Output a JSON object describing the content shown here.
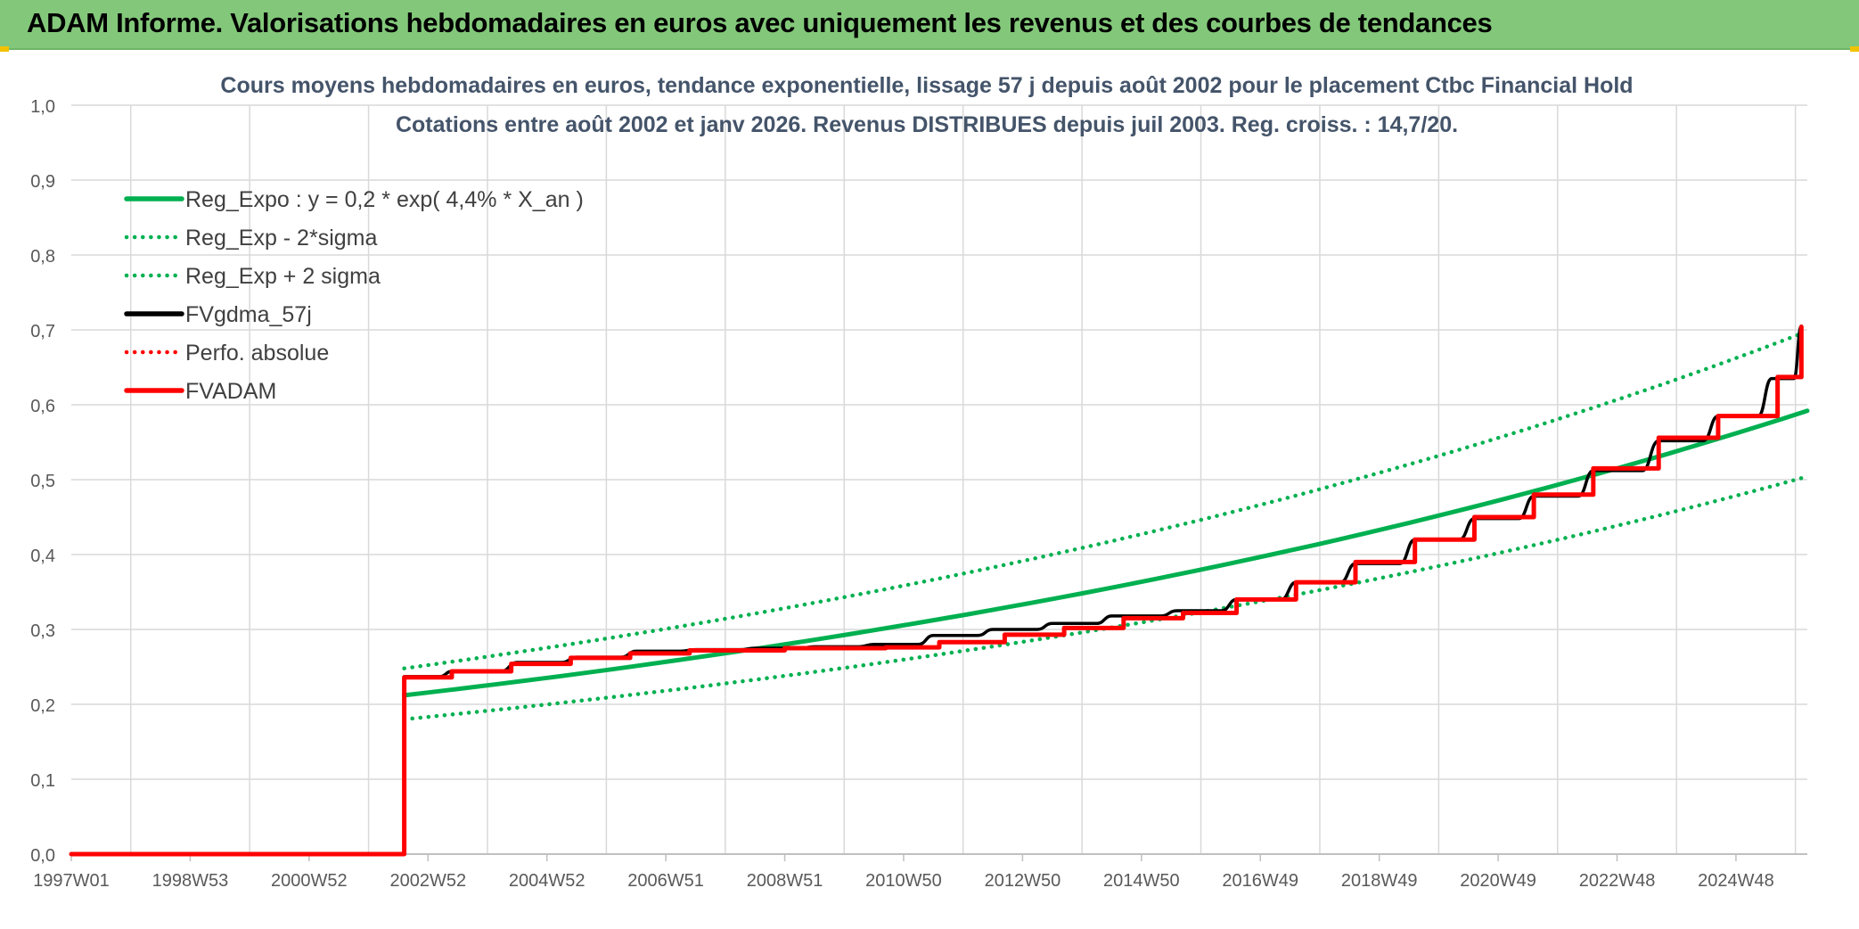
{
  "header": {
    "title": "ADAM Informe. Valorisations hebdomadaires en euros avec uniquement les revenus et des courbes de tendances"
  },
  "colors": {
    "header_bg": "#83c87a",
    "trend": "#00b050",
    "black": "#000000",
    "red": "#ff0000",
    "grid": "#d9d9d9"
  },
  "chart_data": {
    "type": "line",
    "title": "Cours moyens hebdomadaires en euros, tendance exponentielle, lissage 57 j depuis août 2002 pour le placement Ctbc Financial Hold",
    "subtitle": "Cotations entre août 2002 et janv 2026. Revenus DISTRIBUES depuis juil 2003. Reg. croiss. : 14,7/20.",
    "xlabel": "",
    "ylabel": "",
    "ylim": [
      0,
      1.0
    ],
    "xlim": [
      1997.0,
      2026.2
    ],
    "y_ticks": [
      "0,0",
      "0,1",
      "0,2",
      "0,3",
      "0,4",
      "0,5",
      "0,6",
      "0,7",
      "0,8",
      "0,9",
      "1,0"
    ],
    "x_tick_labels": [
      {
        "label": "1997W01",
        "x": 1997.0
      },
      {
        "label": "1998W53",
        "x": 1999.0
      },
      {
        "label": "2000W52",
        "x": 2001.0
      },
      {
        "label": "2002W52",
        "x": 2003.0
      },
      {
        "label": "2004W52",
        "x": 2005.0
      },
      {
        "label": "2006W51",
        "x": 2007.0
      },
      {
        "label": "2008W51",
        "x": 2009.0
      },
      {
        "label": "2010W50",
        "x": 2011.0
      },
      {
        "label": "2012W50",
        "x": 2013.0
      },
      {
        "label": "2014W50",
        "x": 2015.0
      },
      {
        "label": "2016W49",
        "x": 2017.0
      },
      {
        "label": "2018W49",
        "x": 2019.0
      },
      {
        "label": "2020W49",
        "x": 2021.0
      },
      {
        "label": "2022W48",
        "x": 2023.0
      },
      {
        "label": "2024W48",
        "x": 2025.0
      }
    ],
    "legend_position": "top-left",
    "series": [
      {
        "name": "Reg_Expo : y = 0,2 * exp( 4,4% *  X_an )",
        "style": "solid",
        "color": "#00b050",
        "x": [
          2002.6,
          2006.0,
          2010.0,
          2014.0,
          2018.0,
          2022.0,
          2026.2
        ],
        "values": [
          0.212,
          0.245,
          0.292,
          0.349,
          0.415,
          0.495,
          0.592
        ]
      },
      {
        "name": "Reg_Exp - 2*sigma",
        "style": "dotted",
        "color": "#00b050",
        "x": [
          2002.6,
          2006.0,
          2010.0,
          2014.0,
          2018.0,
          2022.0,
          2026.1
        ],
        "values": [
          0.18,
          0.208,
          0.248,
          0.296,
          0.353,
          0.421,
          0.502
        ]
      },
      {
        "name": "Reg_Exp + 2 sigma",
        "style": "dotted",
        "color": "#00b050",
        "x": [
          2002.6,
          2006.0,
          2010.0,
          2014.0,
          2018.0,
          2022.0,
          2026.1
        ],
        "values": [
          0.248,
          0.287,
          0.342,
          0.408,
          0.487,
          0.58,
          0.695
        ]
      },
      {
        "name": "FVgdma_57j",
        "style": "solid",
        "color": "#000000",
        "x": [
          1997.0,
          2002.6,
          2002.6,
          2003.4,
          2004.5,
          2005.5,
          2006.5,
          2007.5,
          2008.5,
          2009.5,
          2010.5,
          2011.5,
          2012.5,
          2013.5,
          2014.5,
          2015.6,
          2016.6,
          2017.6,
          2018.6,
          2019.6,
          2020.6,
          2021.6,
          2022.6,
          2023.7,
          2024.7,
          2025.6,
          2026.1
        ],
        "values": [
          0.0,
          0.0,
          0.237,
          0.244,
          0.256,
          0.263,
          0.271,
          0.273,
          0.275,
          0.277,
          0.28,
          0.292,
          0.3,
          0.308,
          0.318,
          0.325,
          0.34,
          0.363,
          0.388,
          0.42,
          0.448,
          0.478,
          0.512,
          0.552,
          0.585,
          0.635,
          0.705
        ]
      },
      {
        "name": "Perfo. absolue",
        "style": "dotted",
        "color": "#ff0000",
        "x": [],
        "values": []
      },
      {
        "name": "FVADAM",
        "style": "step",
        "color": "#ff0000",
        "x": [
          1997.0,
          2002.6,
          2002.6,
          2003.4,
          2004.4,
          2005.4,
          2006.4,
          2007.4,
          2009.0,
          2010.7,
          2011.6,
          2012.7,
          2013.7,
          2014.7,
          2015.7,
          2016.6,
          2017.6,
          2018.6,
          2019.6,
          2020.6,
          2021.6,
          2022.6,
          2023.7,
          2024.7,
          2025.7,
          2026.1
        ],
        "values": [
          0.0,
          0.0,
          0.236,
          0.244,
          0.254,
          0.262,
          0.268,
          0.272,
          0.275,
          0.276,
          0.283,
          0.293,
          0.302,
          0.315,
          0.322,
          0.34,
          0.363,
          0.39,
          0.42,
          0.45,
          0.48,
          0.515,
          0.556,
          0.585,
          0.637,
          0.704
        ]
      }
    ]
  }
}
